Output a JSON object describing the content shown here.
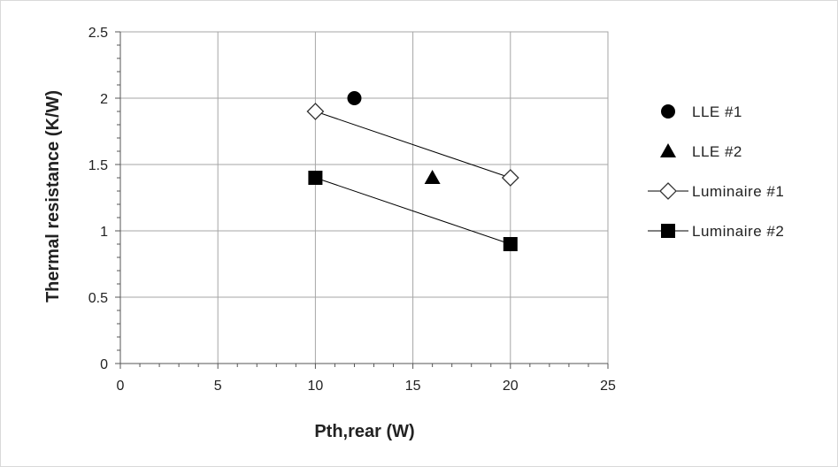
{
  "chart_data": {
    "type": "scatter",
    "xlabel": "Pth,rear (W)",
    "ylabel": "Thermal resistance (K/W)",
    "xlim": [
      0,
      25
    ],
    "ylim": [
      0,
      2.5
    ],
    "xticks": [
      0,
      5,
      10,
      15,
      20,
      25
    ],
    "yticks": [
      0,
      0.5,
      1,
      1.5,
      2,
      2.5
    ],
    "xtick_labels": [
      "0",
      "5",
      "10",
      "15",
      "20",
      "25"
    ],
    "ytick_labels": [
      "0",
      "0.5",
      "1",
      "1.5",
      "2",
      "2.5"
    ],
    "grid": true,
    "legend_position": "right",
    "series": [
      {
        "name": "LLE #1",
        "marker": "circle-filled",
        "line": false,
        "color": "#000000",
        "x": [
          12
        ],
        "y": [
          2.0
        ]
      },
      {
        "name": "LLE #2",
        "marker": "triangle-filled",
        "line": false,
        "color": "#000000",
        "x": [
          16
        ],
        "y": [
          1.4
        ]
      },
      {
        "name": "Luminaire #1",
        "marker": "diamond-open",
        "line": true,
        "color": "#000000",
        "x": [
          10,
          20
        ],
        "y": [
          1.9,
          1.4
        ]
      },
      {
        "name": "Luminaire #2",
        "marker": "square-filled",
        "line": true,
        "color": "#000000",
        "x": [
          10,
          20
        ],
        "y": [
          1.4,
          0.9
        ]
      }
    ]
  }
}
